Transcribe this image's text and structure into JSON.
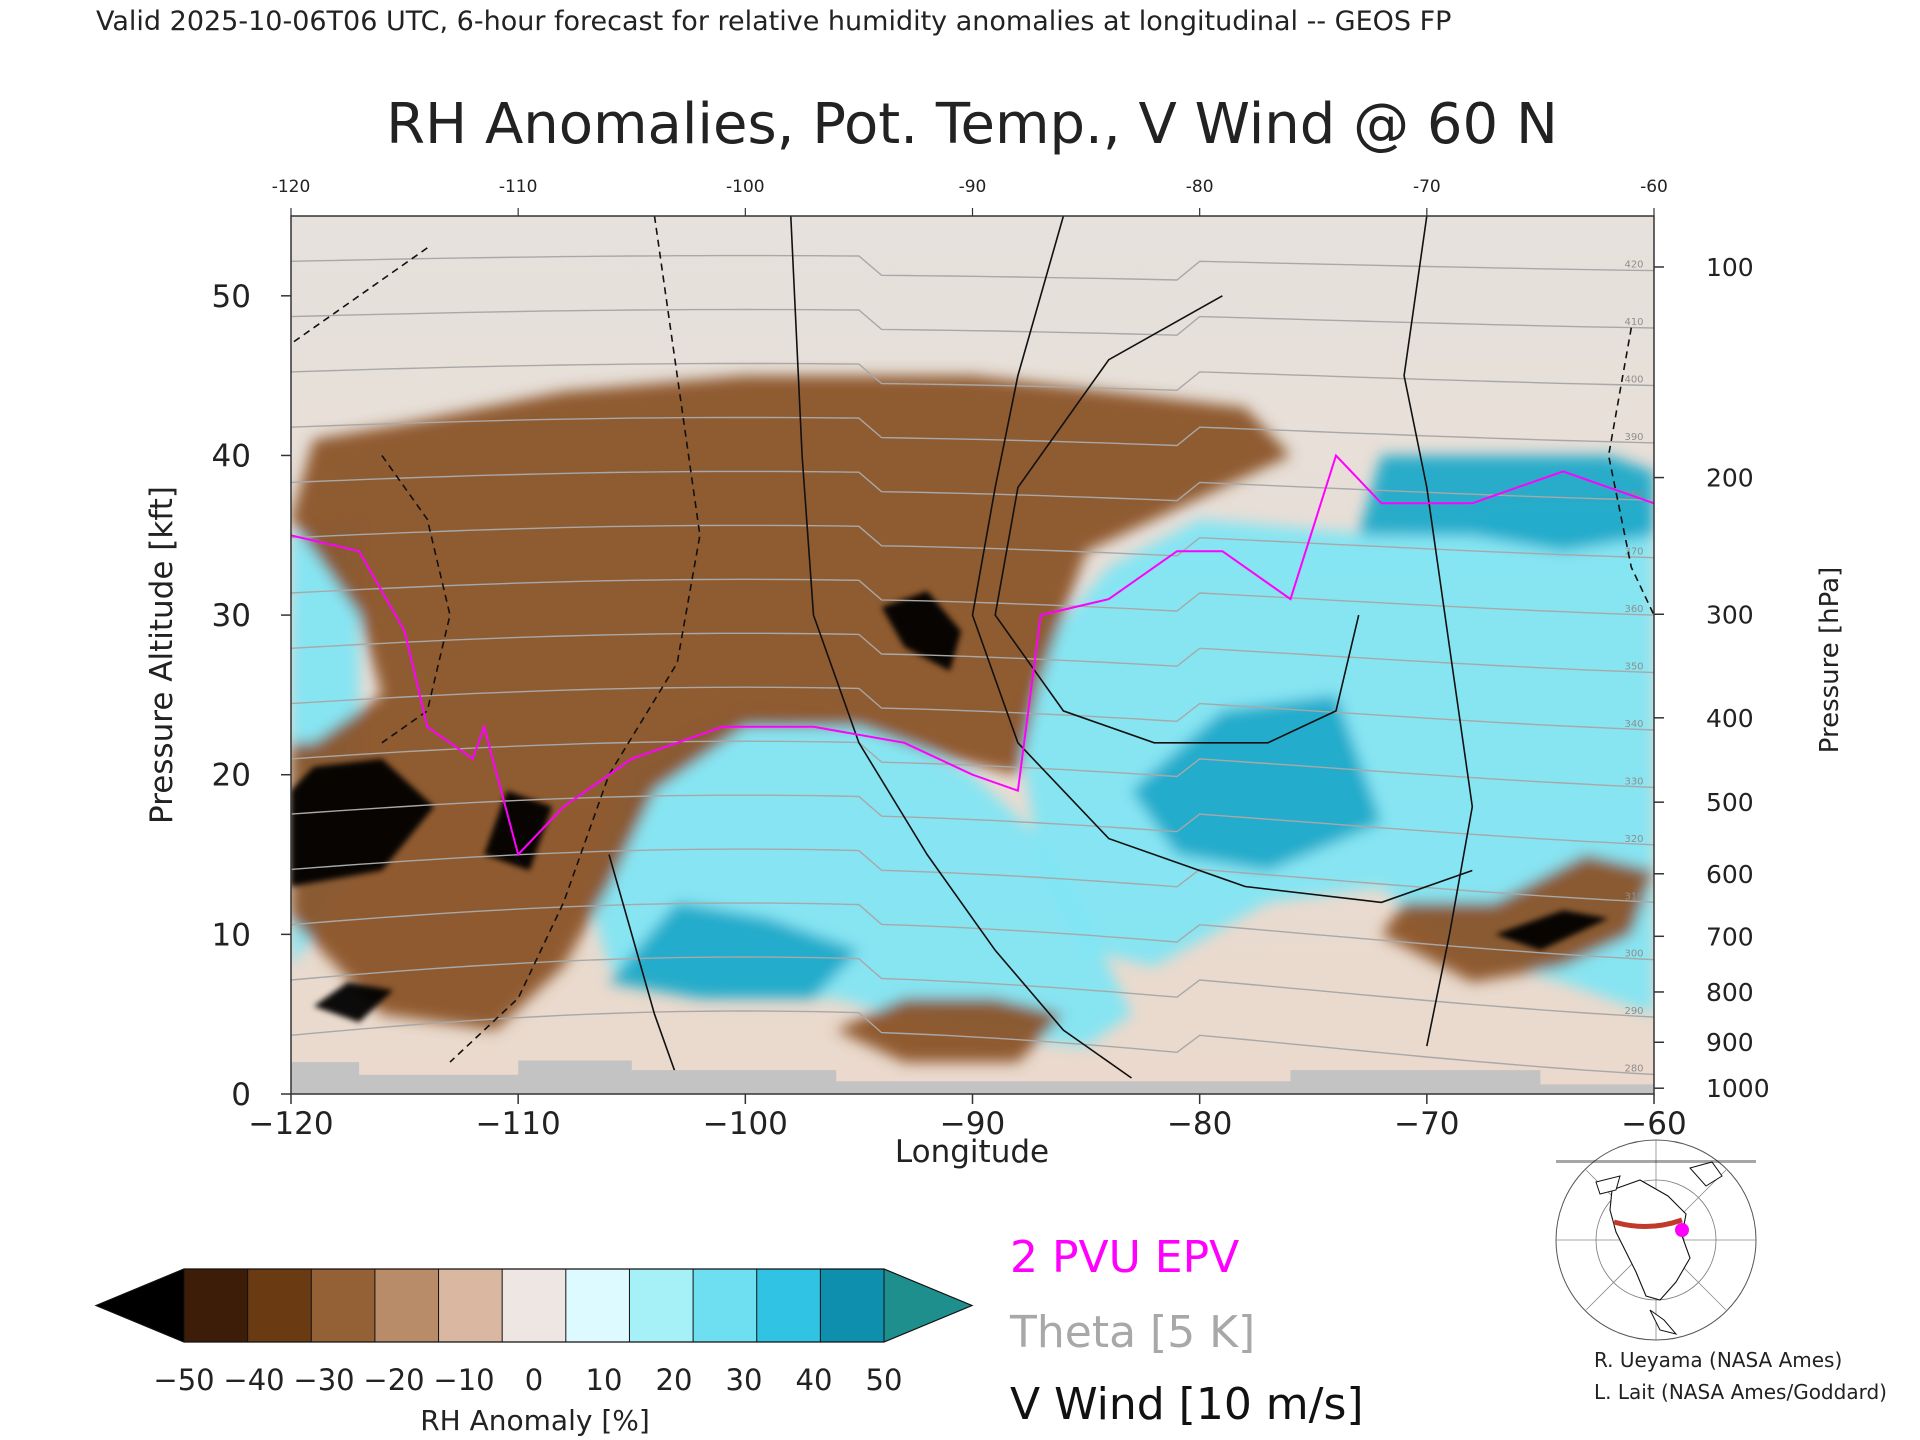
{
  "header": {
    "valid_line": "Valid 2025-10-06T06 UTC, 6-hour forecast for relative humidity anomalies at longitudinal -- GEOS FP"
  },
  "chart_data": {
    "type": "heatmap",
    "title": "RH Anomalies, Pot. Temp., V Wind @ 60 N",
    "xlabel": "Longitude",
    "ylabel": "Pressure Altitude [kft]",
    "y2label": "Pressure [hPa]",
    "xlim": [
      -120,
      -60
    ],
    "ylim": [
      0,
      55
    ],
    "x_ticks": [
      -120,
      -110,
      -100,
      -90,
      -80,
      -70,
      -60
    ],
    "x_tick_labels": [
      "−120",
      "−110",
      "−100",
      "−90",
      "−80",
      "−70",
      "−60"
    ],
    "top_tick_labels": [
      "-120",
      "-110",
      "-100",
      "-90",
      "-80",
      "-70",
      "-60"
    ],
    "y_ticks": [
      0,
      10,
      20,
      30,
      40,
      50
    ],
    "y_tick_labels": [
      "0",
      "10",
      "20",
      "30",
      "40",
      "50"
    ],
    "pressure_ticks": [
      {
        "hpa": 100,
        "label": "100"
      },
      {
        "hpa": 200,
        "label": "200"
      },
      {
        "hpa": 300,
        "label": "300"
      },
      {
        "hpa": 400,
        "label": "400"
      },
      {
        "hpa": 500,
        "label": "500"
      },
      {
        "hpa": 600,
        "label": "600"
      },
      {
        "hpa": 700,
        "label": "700"
      },
      {
        "hpa": 800,
        "label": "800"
      },
      {
        "hpa": 900,
        "label": "900"
      },
      {
        "hpa": 1000,
        "label": "1000"
      }
    ],
    "rh_anomaly_regions": [
      {
        "kind": "moist",
        "polygon": [
          [
            -120,
            8
          ],
          [
            -117,
            14
          ],
          [
            -117,
            36
          ],
          [
            -120,
            35
          ]
        ]
      },
      {
        "kind": "moist",
        "polygon": [
          [
            -107,
            13
          ],
          [
            -105,
            21
          ],
          [
            -100,
            24
          ],
          [
            -94,
            23
          ],
          [
            -90,
            20
          ],
          [
            -87,
            16
          ],
          [
            -85,
            11
          ],
          [
            -83,
            5
          ],
          [
            -85,
            3
          ],
          [
            -91,
            4
          ],
          [
            -96,
            6
          ],
          [
            -101,
            6
          ],
          [
            -106,
            8
          ]
        ]
      },
      {
        "kind": "moist",
        "polygon": [
          [
            -88,
            23
          ],
          [
            -87,
            28
          ],
          [
            -84,
            33
          ],
          [
            -80,
            36
          ],
          [
            -72,
            35
          ],
          [
            -66,
            37
          ],
          [
            -60,
            37
          ],
          [
            -60,
            5
          ],
          [
            -64,
            7
          ],
          [
            -69,
            9
          ],
          [
            -72,
            13
          ],
          [
            -77,
            12
          ],
          [
            -82,
            8
          ],
          [
            -85,
            9
          ],
          [
            -87,
            14
          ]
        ]
      },
      {
        "kind": "very_moist",
        "polygon": [
          [
            -73,
            35
          ],
          [
            -72,
            40
          ],
          [
            -62,
            40
          ],
          [
            -60,
            39
          ],
          [
            -60,
            35
          ],
          [
            -64,
            34
          ],
          [
            -68,
            35
          ]
        ]
      },
      {
        "kind": "very_moist",
        "polygon": [
          [
            -83,
            19
          ],
          [
            -79,
            24
          ],
          [
            -74,
            25
          ],
          [
            -72,
            17
          ],
          [
            -77,
            14
          ],
          [
            -81,
            15
          ]
        ]
      },
      {
        "kind": "very_moist",
        "polygon": [
          [
            -106,
            7
          ],
          [
            -103,
            12
          ],
          [
            -99,
            11
          ],
          [
            -95,
            9
          ],
          [
            -97,
            6
          ],
          [
            -102,
            6
          ]
        ]
      },
      {
        "kind": "dry",
        "polygon": [
          [
            -120,
            11
          ],
          [
            -116,
            5
          ],
          [
            -111,
            4
          ],
          [
            -108,
            8
          ],
          [
            -106,
            13
          ],
          [
            -104,
            19
          ],
          [
            -100,
            23
          ],
          [
            -95,
            23
          ],
          [
            -91,
            21
          ],
          [
            -88,
            20
          ],
          [
            -87,
            26
          ],
          [
            -85,
            34
          ],
          [
            -82,
            36
          ],
          [
            -79,
            38
          ],
          [
            -76,
            40
          ],
          [
            -78,
            43
          ],
          [
            -90,
            45
          ],
          [
            -100,
            45
          ],
          [
            -108,
            44
          ],
          [
            -115,
            42
          ],
          [
            -119,
            41
          ],
          [
            -120,
            36
          ],
          [
            -117,
            30
          ],
          [
            -116,
            25
          ],
          [
            -119,
            22
          ],
          [
            -120,
            22
          ]
        ]
      },
      {
        "kind": "dry",
        "polygon": [
          [
            -96,
            4
          ],
          [
            -93,
            6
          ],
          [
            -89,
            6
          ],
          [
            -86,
            5
          ],
          [
            -88,
            2
          ],
          [
            -93,
            2
          ]
        ]
      },
      {
        "kind": "dry",
        "polygon": [
          [
            -72,
            10
          ],
          [
            -68,
            7
          ],
          [
            -64,
            8
          ],
          [
            -61,
            10
          ],
          [
            -60,
            14
          ],
          [
            -63,
            15
          ],
          [
            -67,
            12
          ],
          [
            -71,
            12
          ]
        ]
      },
      {
        "kind": "very_dry",
        "polygon": [
          [
            -120,
            19
          ],
          [
            -119,
            20.5
          ],
          [
            -116,
            21
          ],
          [
            -113.7,
            18
          ],
          [
            -116,
            14
          ],
          [
            -120,
            13
          ]
        ]
      },
      {
        "kind": "very_dry",
        "polygon": [
          [
            -111.5,
            15
          ],
          [
            -110.5,
            19
          ],
          [
            -108.5,
            18
          ],
          [
            -109.5,
            14
          ]
        ]
      },
      {
        "kind": "very_dry",
        "polygon": [
          [
            -119,
            5.5
          ],
          [
            -117.5,
            7
          ],
          [
            -115.5,
            6.5
          ],
          [
            -117,
            4.5
          ]
        ]
      },
      {
        "kind": "very_dry",
        "polygon": [
          [
            -94,
            30.5
          ],
          [
            -92,
            31.5
          ],
          [
            -90.5,
            29
          ],
          [
            -91,
            26.5
          ],
          [
            -93,
            28
          ]
        ]
      },
      {
        "kind": "very_dry",
        "polygon": [
          [
            -67,
            10
          ],
          [
            -64,
            11.5
          ],
          [
            -62,
            11
          ],
          [
            -65,
            9
          ]
        ]
      }
    ],
    "theta_contour_k": [
      280,
      290,
      300,
      310,
      320,
      330,
      340,
      350,
      360,
      370,
      380,
      390,
      400,
      410,
      420
    ],
    "epv_2pvu_x": [
      -120,
      -117,
      -115,
      -114,
      -112,
      -111.5,
      -110,
      -108,
      -105,
      -101,
      -97,
      -93,
      -90,
      -88,
      -87,
      -84,
      -81,
      -79,
      -76,
      -74,
      -72,
      -68,
      -64,
      -60
    ],
    "epv_2pvu_kft": [
      35,
      34,
      29,
      23,
      21,
      23,
      15,
      18,
      21,
      23,
      23,
      22,
      20,
      19,
      30,
      31,
      34,
      34,
      31,
      40,
      37,
      37,
      39,
      37
    ],
    "legend": {
      "colorbar_ticks": [
        -50,
        -40,
        -30,
        -20,
        -10,
        0,
        10,
        20,
        30,
        40,
        50
      ],
      "colorbar_tick_labels": [
        "−50",
        "−40",
        "−30",
        "−20",
        "−10",
        "0",
        "10",
        "20",
        "30",
        "40",
        "50"
      ],
      "colorbar_colors": [
        "#000000",
        "#3d1d07",
        "#6a3a13",
        "#946035",
        "#b88b69",
        "#d9b7a0",
        "#eee6e2",
        "#dcfaff",
        "#a6f0f7",
        "#6ddff0",
        "#30c3e3",
        "#0e8fad",
        "#1e8f8c"
      ],
      "colorbar_label": "RH Anomaly [%]",
      "epv_label": "2 PVU EPV",
      "theta_label": "Theta [5 K]",
      "wind_label": "V Wind [10 m/s]",
      "epv_color": "#ff00ff",
      "theta_color": "#a8a8a8"
    }
  },
  "credits": {
    "line1": "R. Ueyama (NASA Ames)",
    "line2": "L. Lait (NASA Ames/Goddard)"
  }
}
